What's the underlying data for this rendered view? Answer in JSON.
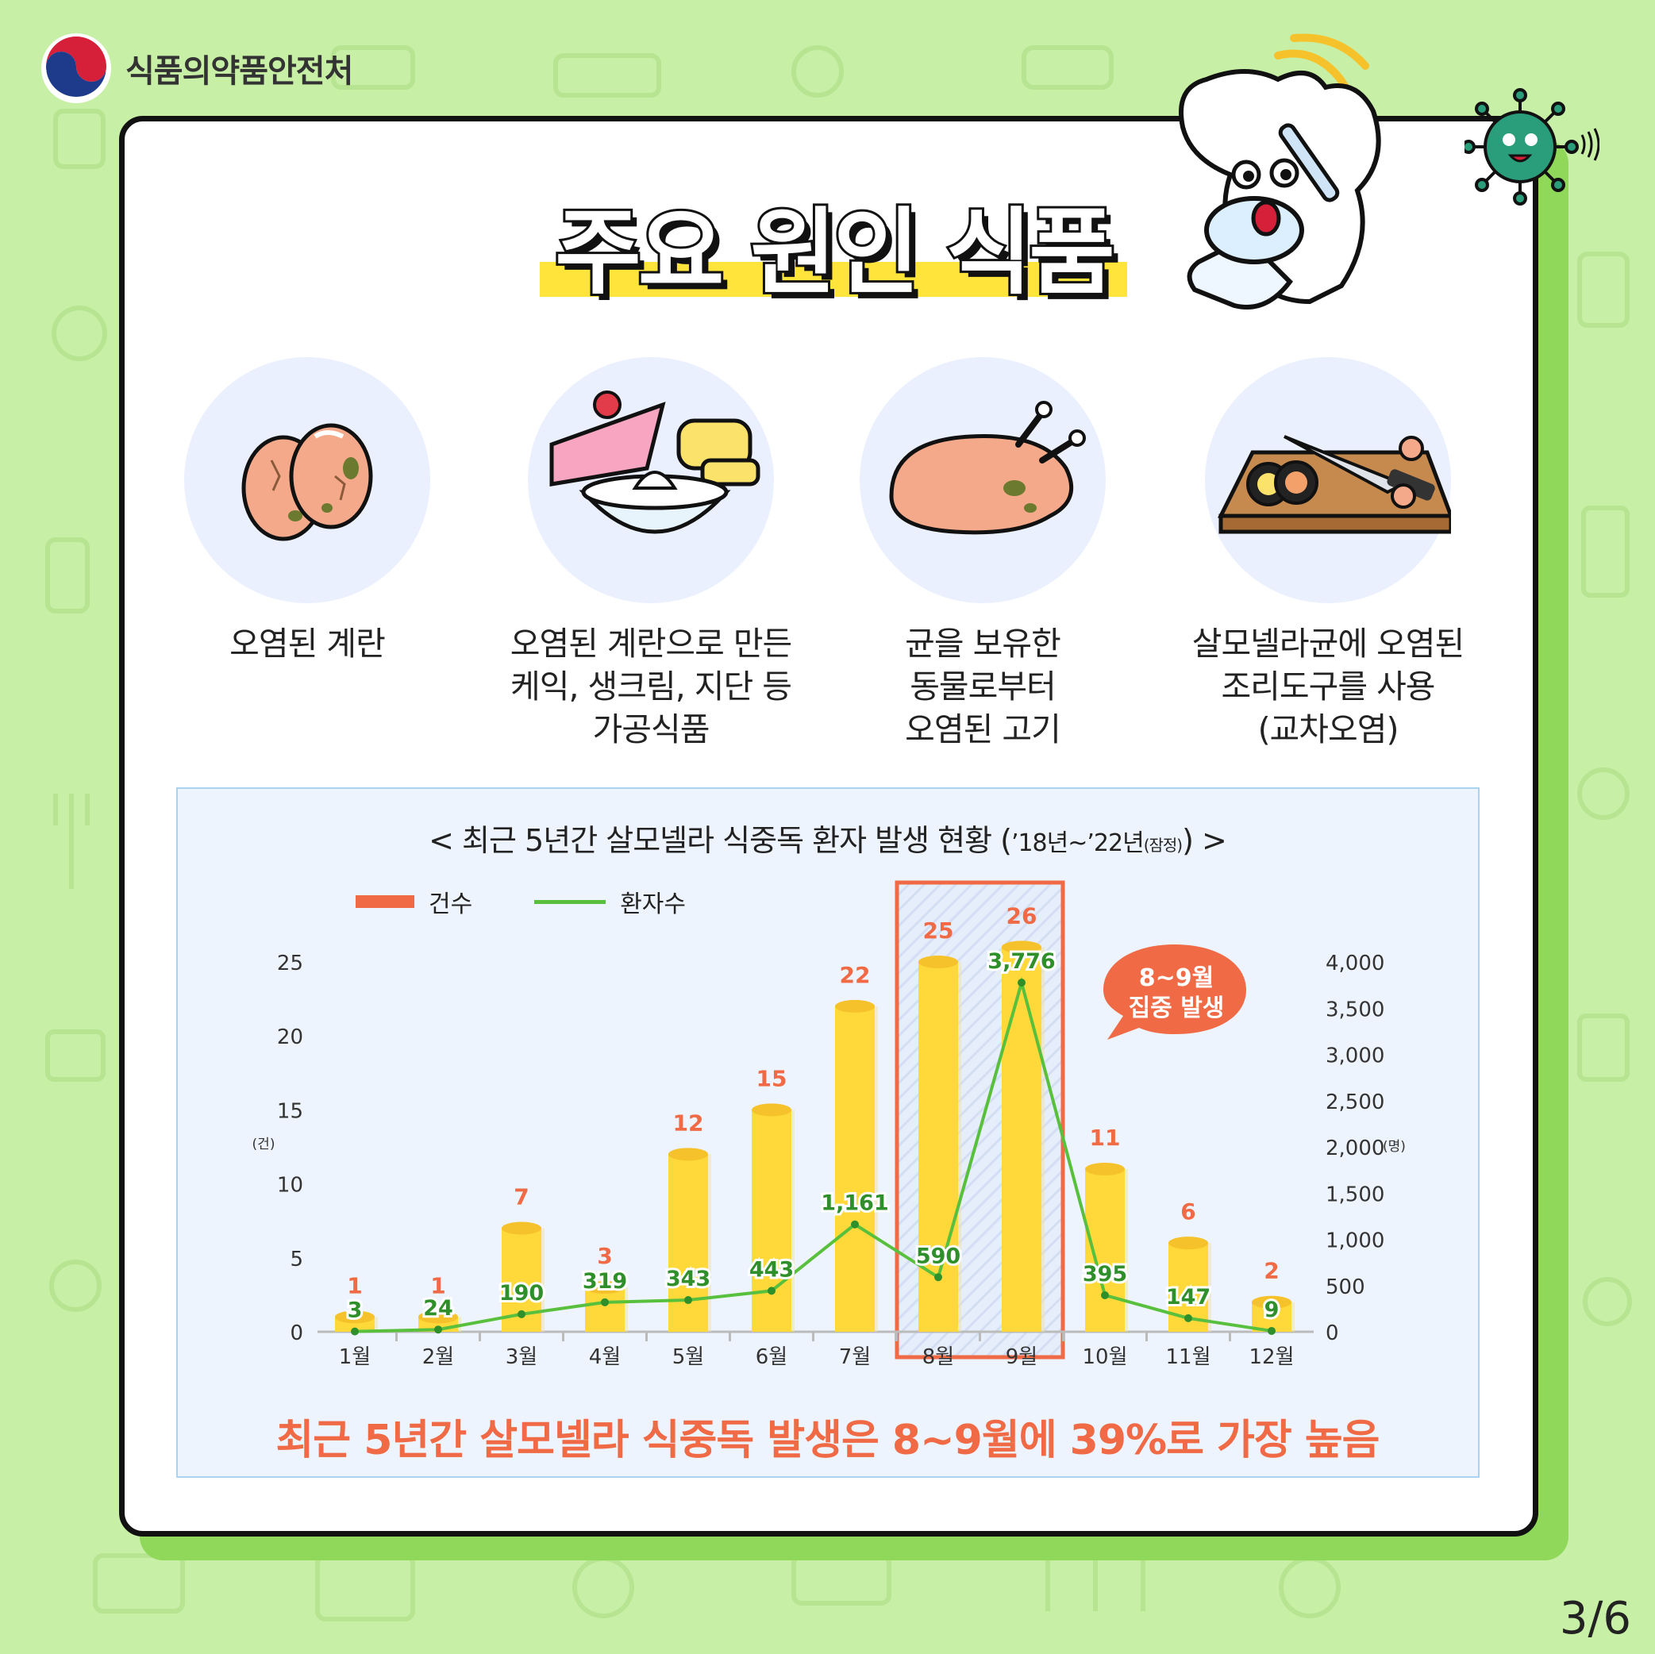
{
  "brand": {
    "name": "식품의약품안전처"
  },
  "title": "주요 원인 식품",
  "foods": [
    {
      "caption": "오염된 계란",
      "icon": "contaminated-eggs-icon"
    },
    {
      "caption": "오염된 계란으로 만든\n케익, 생크림, 지단 등\n가공식품",
      "icon": "processed-food-icon"
    },
    {
      "caption": "균을 보유한\n동물로부터\n오염된 고기",
      "icon": "contaminated-chicken-icon"
    },
    {
      "caption": "살모넬라균에 오염된\n조리도구를 사용\n(교차오염)",
      "icon": "cutting-board-knife-icon"
    }
  ],
  "chart_title": {
    "main": "< 최근 5년간 살모넬라 식중독 환자 발생 현황 (",
    "years": "’18년~’22년",
    "note": "(잠정)",
    "end": ") >"
  },
  "legend": {
    "cases": "건수",
    "patients": "환자수"
  },
  "callout": {
    "line1": "8~9월",
    "line2": "집중 발생"
  },
  "summary": "최근 5년간 살모넬라 식중독 발생은 8~9월에 39%로 가장 높음",
  "page_number": "3/6",
  "colors": {
    "bar": "#ffd83a",
    "line": "#58c03d",
    "highlight": "#ef6a45",
    "card_bg": "#ffffff",
    "page_bg": "#c8efa6"
  },
  "chart_data": {
    "type": "bar+line",
    "categories": [
      "1월",
      "2월",
      "3월",
      "4월",
      "5월",
      "6월",
      "7월",
      "8월",
      "9월",
      "10월",
      "11월",
      "12월"
    ],
    "series": [
      {
        "name": "건수",
        "type": "bar",
        "axis": "left",
        "values": [
          1,
          1,
          7,
          3,
          12,
          15,
          22,
          25,
          26,
          11,
          6,
          2
        ],
        "labels": [
          "1",
          "1",
          "7",
          "3",
          "12",
          "15",
          "22",
          "25",
          "26",
          "11",
          "6",
          "2"
        ]
      },
      {
        "name": "환자수",
        "type": "line",
        "axis": "right",
        "values": [
          3,
          24,
          190,
          319,
          343,
          443,
          1161,
          590,
          3776,
          395,
          147,
          9
        ],
        "labels": [
          "3",
          "24",
          "190",
          "319",
          "343",
          "443",
          "1,161",
          "590",
          "3,776",
          "395",
          "147",
          "9"
        ]
      }
    ],
    "y_left": {
      "unit": "(건)",
      "range": [
        0,
        25
      ],
      "ticks": [
        "0",
        "5",
        "10",
        "15",
        "20",
        "25"
      ]
    },
    "y_right": {
      "unit": "(명)",
      "range": [
        0,
        4000
      ],
      "ticks": [
        "0",
        "500",
        "1,000",
        "1,500",
        "2,000",
        "2,500",
        "3,000",
        "3,500",
        "4,000"
      ]
    },
    "highlight_categories": [
      "8월",
      "9월"
    ],
    "grid": false,
    "legend_position": "top-left"
  }
}
